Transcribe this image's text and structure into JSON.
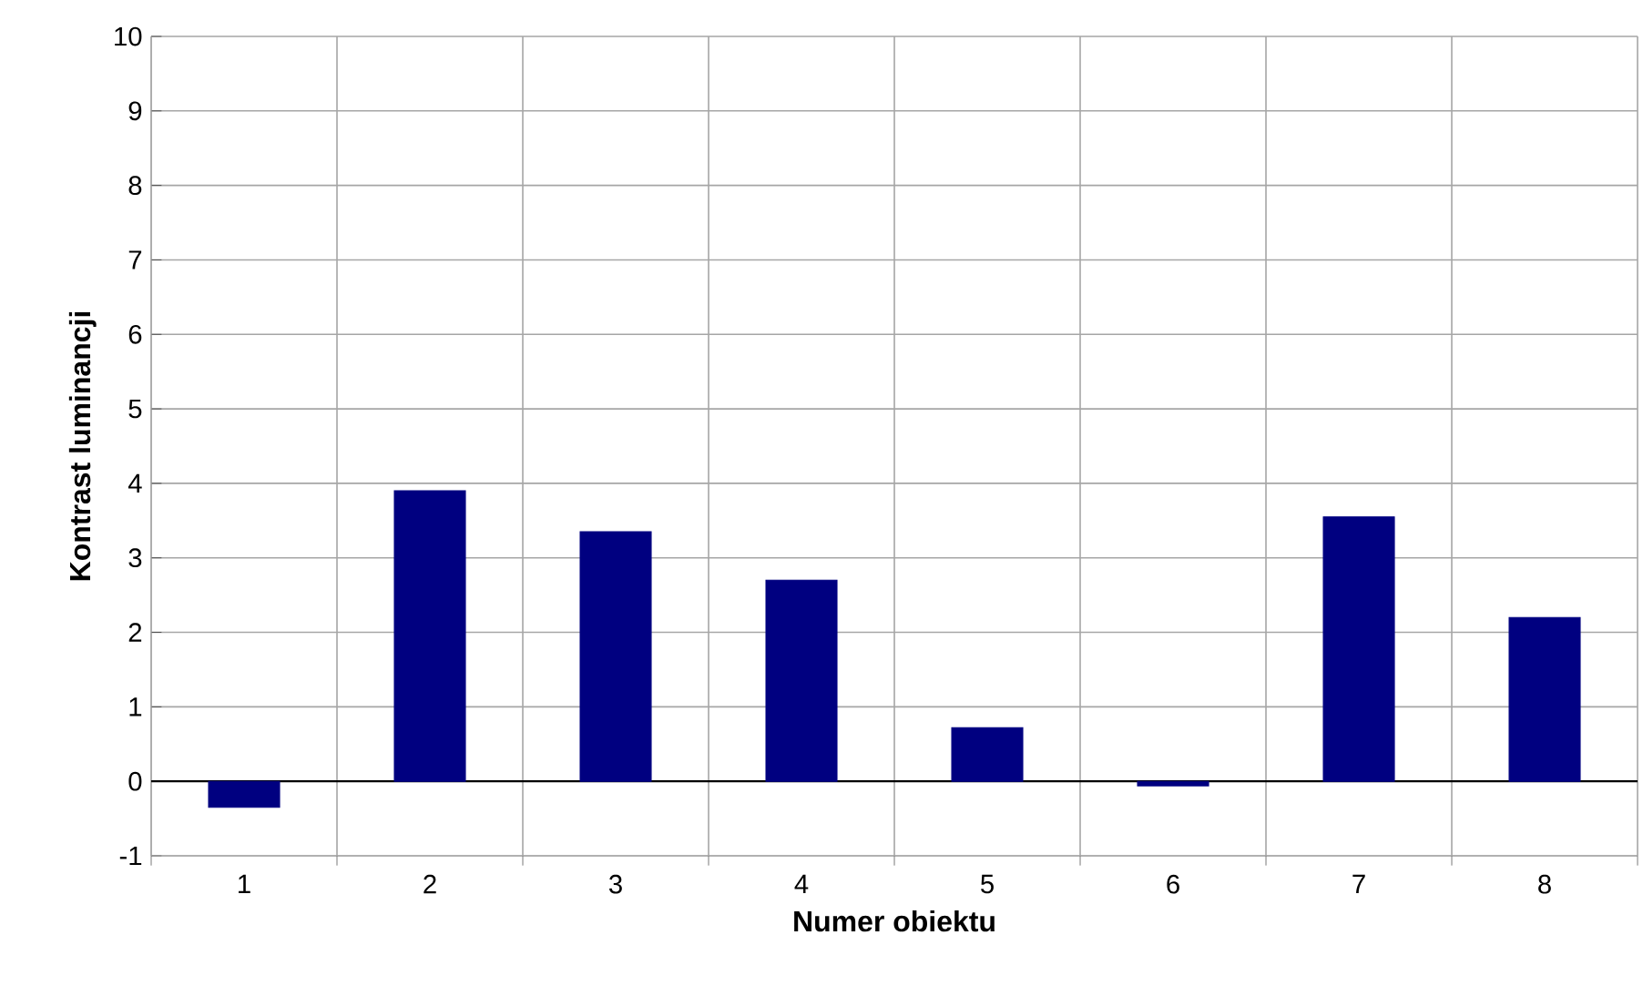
{
  "chart_data": {
    "type": "bar",
    "xlabel": "Numer obiektu",
    "ylabel": "Kontrast luminancji",
    "categories": [
      "1",
      "2",
      "3",
      "4",
      "5",
      "6",
      "7",
      "8"
    ],
    "values": [
      -0.35,
      3.9,
      3.35,
      2.7,
      0.72,
      -0.06,
      3.55,
      2.2
    ],
    "color": "#000080",
    "ylim": [
      -1,
      10
    ],
    "yticks": [
      -1,
      0,
      1,
      2,
      3,
      4,
      5,
      6,
      7,
      8,
      9,
      10
    ],
    "grid": true
  }
}
